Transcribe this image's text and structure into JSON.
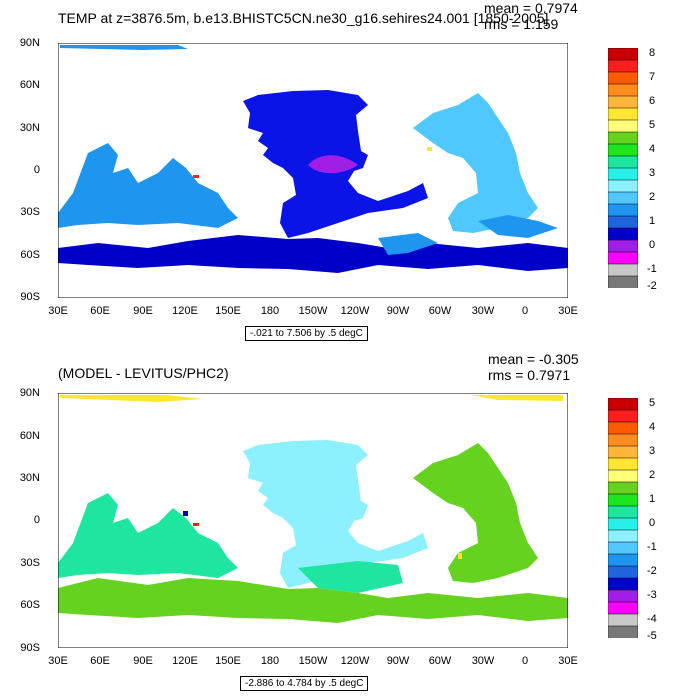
{
  "panels": [
    {
      "title": "TEMP at z=3876.5m, b.e13.BHISTC5CN.ne30_g16.sehires24.001 [1850-2005]",
      "mean": "mean = 0.7974",
      "rms": "rms = 1.159",
      "range": "-.021 to 7.506 by .5 degC",
      "ylabels": [
        "90N",
        "60N",
        "30N",
        "0",
        "30S",
        "60S",
        "90S"
      ],
      "xlabels": [
        "30E",
        "60E",
        "90E",
        "120E",
        "150E",
        "180",
        "150W",
        "120W",
        "90W",
        "60W",
        "30W",
        "0",
        "30E"
      ],
      "legend_labels": [
        "8",
        "7",
        "6",
        "5",
        "4",
        "3",
        "2",
        "1",
        "0",
        "-1",
        "-2"
      ],
      "legend_colors": [
        "#c80000",
        "#ff1e1e",
        "#ff5a00",
        "#ff8c1e",
        "#ffb43c",
        "#ffe632",
        "#ffff78",
        "#64d21e",
        "#1ee61e",
        "#1ee6a0",
        "#28f0e6",
        "#8cf0ff",
        "#50c8ff",
        "#1e96f0",
        "#1e64dc",
        "#0000c8",
        "#a01ee6",
        "#ff00ff",
        "#c8c8c8",
        "#787878"
      ],
      "ocean_colors": {
        "main": "#0a14e6",
        "lighter": "#50c8ff",
        "mid": "#1e96f0",
        "deep": "#0000c8",
        "purple": "#a01ee6",
        "red": "#ff1e1e"
      }
    },
    {
      "title": "(MODEL - LEVITUS/PHC2)",
      "mean": "mean = -0.305",
      "rms": "rms = 0.7971",
      "range": "-2.886 to 4.784 by .5 degC",
      "ylabels": [
        "90N",
        "60N",
        "30N",
        "0",
        "30S",
        "60S",
        "90S"
      ],
      "xlabels": [
        "30E",
        "60E",
        "90E",
        "120E",
        "150E",
        "180",
        "150W",
        "120W",
        "90W",
        "60W",
        "30W",
        "0",
        "30E"
      ],
      "legend_labels": [
        "5",
        "4",
        "3",
        "2",
        "1",
        "0",
        "-1",
        "-2",
        "-3",
        "-4",
        "-5"
      ],
      "legend_colors": [
        "#c80000",
        "#ff1e1e",
        "#ff5a00",
        "#ff8c1e",
        "#ffb43c",
        "#ffe632",
        "#ffff78",
        "#64d21e",
        "#1ee61e",
        "#1ee6a0",
        "#28f0e6",
        "#8cf0ff",
        "#50c8ff",
        "#1e96f0",
        "#1e64dc",
        "#0000c8",
        "#a01ee6",
        "#ff00ff",
        "#c8c8c8",
        "#787878"
      ],
      "ocean_colors": {
        "main": "#8cf0ff",
        "green": "#64d21e",
        "cyan": "#1ee6a0",
        "yellow": "#ffe632",
        "blue": "#0000c8",
        "red": "#ff1e1e"
      }
    }
  ]
}
